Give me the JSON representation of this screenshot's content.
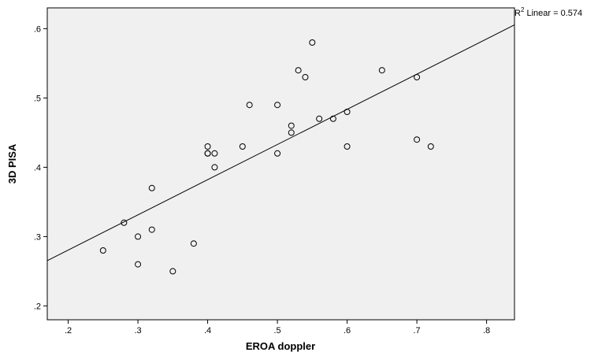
{
  "chart_data": {
    "type": "scatter",
    "xlabel": "EROA doppler",
    "ylabel": "3D PISA",
    "xlim": [
      0.17,
      0.84
    ],
    "ylim": [
      0.18,
      0.63
    ],
    "x_ticks": [
      ".2",
      ".3",
      ".4",
      ".5",
      ".6",
      ".7",
      ".8"
    ],
    "x_tick_values": [
      0.2,
      0.3,
      0.4,
      0.5,
      0.6,
      0.7,
      0.8
    ],
    "y_ticks": [
      ".2",
      ".3",
      ".4",
      ".5",
      ".6"
    ],
    "y_tick_values": [
      0.2,
      0.3,
      0.4,
      0.5,
      0.6
    ],
    "grid": false,
    "annotation": {
      "r_symbol": "R",
      "superscript": "2",
      "text": " Linear = 0.574"
    },
    "fit_line": {
      "x": [
        0.17,
        0.84
      ],
      "y": [
        0.2653,
        0.6055
      ]
    },
    "points": [
      {
        "x": 0.25,
        "y": 0.28
      },
      {
        "x": 0.28,
        "y": 0.32
      },
      {
        "x": 0.3,
        "y": 0.3
      },
      {
        "x": 0.3,
        "y": 0.26
      },
      {
        "x": 0.32,
        "y": 0.37
      },
      {
        "x": 0.32,
        "y": 0.31
      },
      {
        "x": 0.35,
        "y": 0.25
      },
      {
        "x": 0.38,
        "y": 0.29
      },
      {
        "x": 0.4,
        "y": 0.43
      },
      {
        "x": 0.4,
        "y": 0.42
      },
      {
        "x": 0.4,
        "y": 0.42
      },
      {
        "x": 0.41,
        "y": 0.42
      },
      {
        "x": 0.41,
        "y": 0.4
      },
      {
        "x": 0.45,
        "y": 0.43
      },
      {
        "x": 0.46,
        "y": 0.49
      },
      {
        "x": 0.5,
        "y": 0.49
      },
      {
        "x": 0.5,
        "y": 0.42
      },
      {
        "x": 0.52,
        "y": 0.46
      },
      {
        "x": 0.52,
        "y": 0.45
      },
      {
        "x": 0.53,
        "y": 0.54
      },
      {
        "x": 0.54,
        "y": 0.53
      },
      {
        "x": 0.55,
        "y": 0.58
      },
      {
        "x": 0.56,
        "y": 0.47
      },
      {
        "x": 0.58,
        "y": 0.47
      },
      {
        "x": 0.6,
        "y": 0.48
      },
      {
        "x": 0.6,
        "y": 0.43
      },
      {
        "x": 0.65,
        "y": 0.54
      },
      {
        "x": 0.7,
        "y": 0.53
      },
      {
        "x": 0.7,
        "y": 0.44
      },
      {
        "x": 0.72,
        "y": 0.43
      }
    ],
    "colors": {
      "plot_background": "#f0f0f0",
      "marker": "#000000",
      "line": "#000000"
    }
  }
}
